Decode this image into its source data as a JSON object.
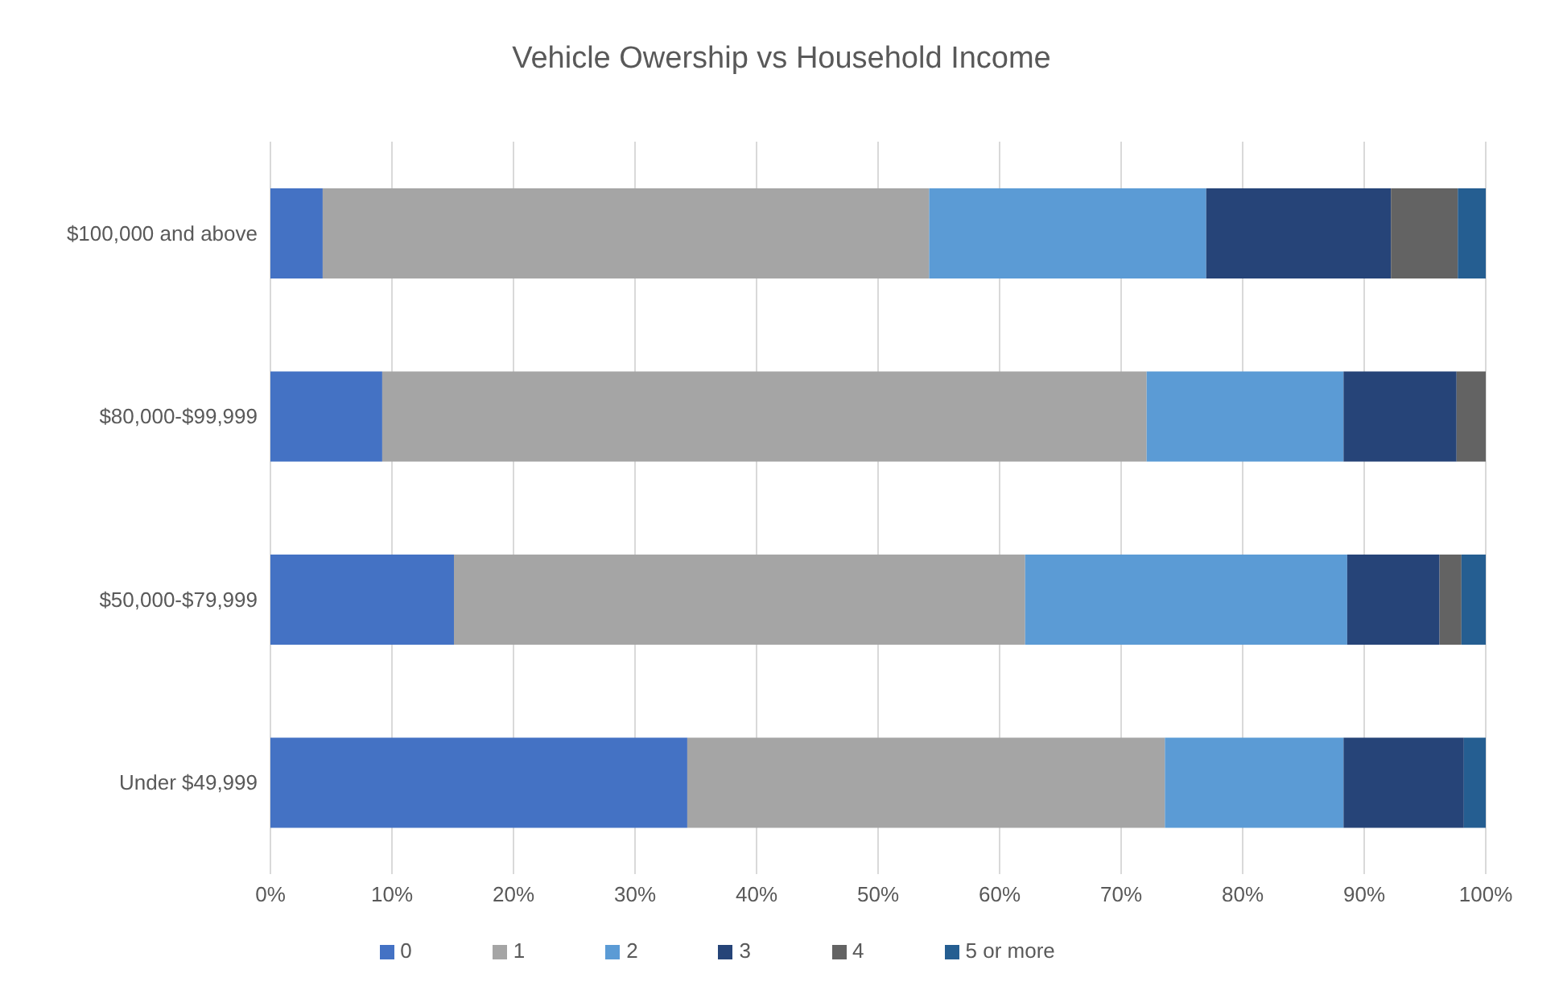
{
  "chart_data": {
    "type": "bar",
    "orientation": "horizontal",
    "stacked": true,
    "title": "Vehicle Owership vs Household Income",
    "categories": [
      "$100,000 and above",
      "$80,000-$99,999",
      "$50,000-$79,999",
      "Under $49,999"
    ],
    "series": [
      {
        "name": "0",
        "color": "#4472c4",
        "values": [
          4.3,
          9.2,
          15.1,
          34.3
        ]
      },
      {
        "name": "1",
        "color": "#a5a5a5",
        "values": [
          49.9,
          62.9,
          47.0,
          39.3
        ]
      },
      {
        "name": "2",
        "color": "#5b9bd5",
        "values": [
          22.8,
          16.2,
          26.5,
          14.7
        ]
      },
      {
        "name": "3",
        "color": "#264478",
        "values": [
          15.2,
          9.3,
          7.6,
          9.9
        ]
      },
      {
        "name": "4",
        "color": "#636363",
        "values": [
          5.5,
          2.4,
          1.8,
          0
        ]
      },
      {
        "name": "5 or more",
        "color": "#255e91",
        "values": [
          2.3,
          0,
          2.0,
          1.8
        ]
      }
    ],
    "xlim": [
      0,
      100
    ],
    "xticks": [
      {
        "value": 0,
        "label": "0%"
      },
      {
        "value": 10,
        "label": "10%"
      },
      {
        "value": 20,
        "label": "20%"
      },
      {
        "value": 30,
        "label": "30%"
      },
      {
        "value": 40,
        "label": "40%"
      },
      {
        "value": 50,
        "label": "50%"
      },
      {
        "value": 60,
        "label": "60%"
      },
      {
        "value": 70,
        "label": "70%"
      },
      {
        "value": 80,
        "label": "80%"
      },
      {
        "value": 90,
        "label": "90%"
      },
      {
        "value": 100,
        "label": "100%"
      }
    ],
    "grid": "x",
    "legend": "bottom"
  }
}
